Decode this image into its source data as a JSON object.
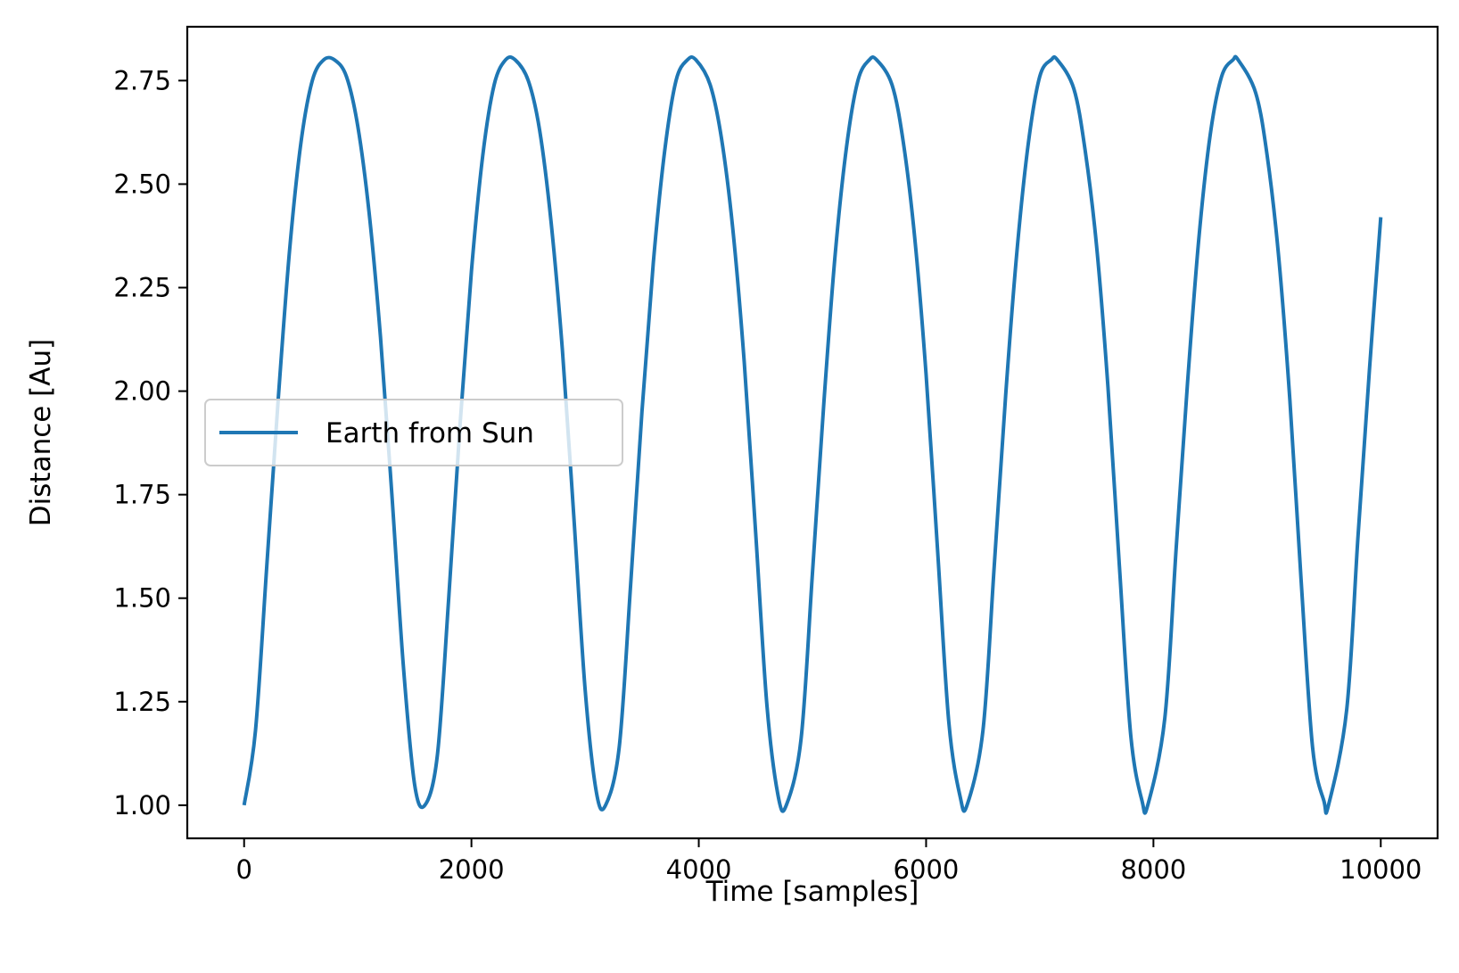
{
  "chart_data": {
    "type": "line",
    "xlabel": "Time [samples]",
    "ylabel": "Distance [Au]",
    "xlim": [
      -500,
      10500
    ],
    "ylim": [
      0.92,
      2.88
    ],
    "xticks": [
      0,
      2000,
      4000,
      6000,
      8000,
      10000
    ],
    "xtick_labels": [
      "0",
      "2000",
      "4000",
      "6000",
      "8000",
      "10000"
    ],
    "yticks": [
      1.0,
      1.25,
      1.5,
      1.75,
      2.0,
      2.25,
      2.5,
      2.75
    ],
    "ytick_labels": [
      "1.00",
      "1.25",
      "1.50",
      "1.75",
      "2.00",
      "2.25",
      "2.50",
      "2.75"
    ],
    "grid": false,
    "legend_position": "center-left",
    "series": [
      {
        "name": "Earth from Sun",
        "color": "#1f77b4",
        "x": [
          0,
          100,
          200,
          300,
          400,
          500,
          600,
          700,
          795,
          900,
          1000,
          1100,
          1200,
          1300,
          1400,
          1500,
          1590,
          1700,
          1800,
          1900,
          2000,
          2100,
          2200,
          2300,
          2385,
          2500,
          2600,
          2700,
          2800,
          2900,
          3000,
          3100,
          3180,
          3300,
          3400,
          3500,
          3600,
          3700,
          3800,
          3900,
          3975,
          4100,
          4200,
          4300,
          4400,
          4500,
          4600,
          4700,
          4770,
          4900,
          5000,
          5100,
          5200,
          5300,
          5400,
          5500,
          5565,
          5700,
          5800,
          5900,
          6000,
          6100,
          6200,
          6300,
          6360,
          6500,
          6600,
          6700,
          6800,
          6900,
          7000,
          7100,
          7155,
          7300,
          7400,
          7500,
          7600,
          7700,
          7800,
          7900,
          7950,
          8100,
          8200,
          8300,
          8400,
          8500,
          8600,
          8700,
          8745,
          8900,
          9000,
          9100,
          9200,
          9300,
          9400,
          9500,
          9540,
          9700,
          9800,
          9900,
          10000
        ],
        "y": [
          1.0,
          1.18,
          1.58,
          1.98,
          2.34,
          2.6,
          2.75,
          2.8,
          2.8,
          2.76,
          2.64,
          2.43,
          2.13,
          1.75,
          1.34,
          1.05,
          1.0,
          1.12,
          1.5,
          1.92,
          2.29,
          2.57,
          2.74,
          2.8,
          2.8,
          2.75,
          2.63,
          2.41,
          2.1,
          1.7,
          1.28,
          1.03,
          1.0,
          1.14,
          1.53,
          1.95,
          2.31,
          2.58,
          2.75,
          2.8,
          2.8,
          2.74,
          2.61,
          2.39,
          2.07,
          1.66,
          1.24,
          1.02,
          1.0,
          1.16,
          1.56,
          1.97,
          2.33,
          2.59,
          2.75,
          2.8,
          2.8,
          2.74,
          2.6,
          2.37,
          2.04,
          1.62,
          1.2,
          1.02,
          1.0,
          1.18,
          1.58,
          1.99,
          2.34,
          2.6,
          2.76,
          2.8,
          2.8,
          2.73,
          2.58,
          2.35,
          2.01,
          1.58,
          1.17,
          1.01,
          1.0,
          1.21,
          1.62,
          2.02,
          2.37,
          2.62,
          2.76,
          2.8,
          2.8,
          2.72,
          2.57,
          2.33,
          1.98,
          1.54,
          1.14,
          1.01,
          1.0,
          1.23,
          1.65,
          2.05,
          2.42
        ]
      }
    ]
  }
}
